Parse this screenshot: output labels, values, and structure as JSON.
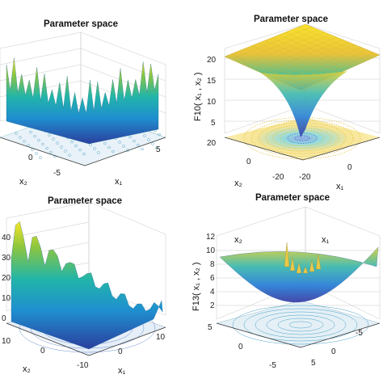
{
  "chart_data": [
    {
      "type": "surface",
      "title": "Parameter space",
      "xlabel": "x₁",
      "ylabel": "x₂",
      "zlabel": "",
      "x_ticks": [
        "5"
      ],
      "y_ticks": [
        "0",
        "-5"
      ],
      "z_ticks": [],
      "contour_on_floor": true,
      "grid": true,
      "colormap": "parula"
    },
    {
      "type": "surface",
      "title": "Parameter space",
      "xlabel": "x₁",
      "ylabel": "x₂",
      "zlabel": "F10( x₁ , x₂ )",
      "x_ticks": [
        "-20",
        "0"
      ],
      "y_ticks": [
        "20",
        "0",
        "-20"
      ],
      "z_ticks": [
        "20",
        "15",
        "10",
        "5"
      ],
      "contour_on_floor": true,
      "grid": true,
      "colormap": "parula"
    },
    {
      "type": "surface",
      "title": "Parameter space",
      "xlabel": "x₁",
      "ylabel": "x₂",
      "zlabel": "",
      "x_ticks": [
        "10",
        "0"
      ],
      "y_ticks": [
        "10",
        "0",
        "-10"
      ],
      "z_ticks": [
        "40",
        "30",
        "20",
        "10",
        "0"
      ],
      "contour_on_floor": true,
      "grid": true,
      "colormap": "parula"
    },
    {
      "type": "surface",
      "title": "Parameter space",
      "xlabel": "x₁",
      "ylabel": "x₂",
      "zlabel": "F13( x₁ , x₂ )",
      "x_ticks": [
        "5",
        "0",
        "-5"
      ],
      "y_ticks": [
        "5",
        "0",
        "-5"
      ],
      "z_ticks": [
        "12",
        "10",
        "8",
        "6",
        "4",
        "2"
      ],
      "contour_on_floor": true,
      "grid": true,
      "colormap": "parula"
    }
  ]
}
